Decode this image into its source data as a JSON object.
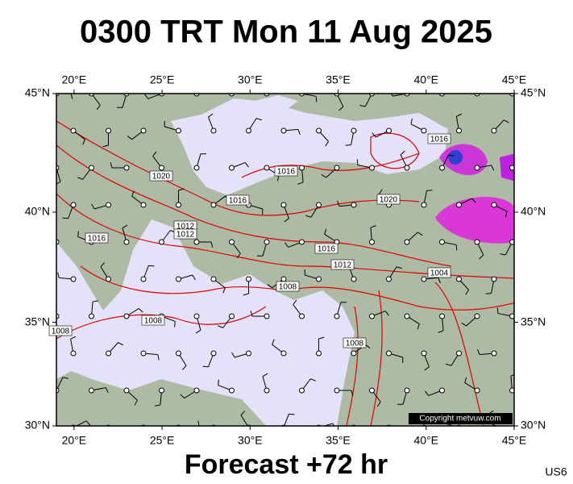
{
  "title": "0300 TRT Mon 11 Aug 2025",
  "subtitle": "Forecast +72 hr",
  "product_code": "US6",
  "copyright": "Copyright metvuw.com",
  "map": {
    "lonlim": [
      19,
      45
    ],
    "latlim": [
      30,
      45
    ],
    "lon_ticks": [
      {
        "value": 20,
        "label": "20°E"
      },
      {
        "value": 25,
        "label": "25°E"
      },
      {
        "value": 30,
        "label": "30°E"
      },
      {
        "value": 35,
        "label": "35°E"
      },
      {
        "value": 40,
        "label": "40°E"
      },
      {
        "value": 45,
        "label": "45°E"
      }
    ],
    "lat_ticks": [
      {
        "value": 45,
        "label": "45°N"
      },
      {
        "value": 40,
        "label": "40°N"
      },
      {
        "value": 35,
        "label": "35°N"
      },
      {
        "value": 30,
        "label": "30°N"
      }
    ],
    "isobar_labels": [
      "1016",
      "1020",
      "1016",
      "1012",
      "1016",
      "1016",
      "1012",
      "1008",
      "1008",
      "1004",
      "1008",
      "1008",
      "1012",
      "1020",
      "1016"
    ]
  }
}
